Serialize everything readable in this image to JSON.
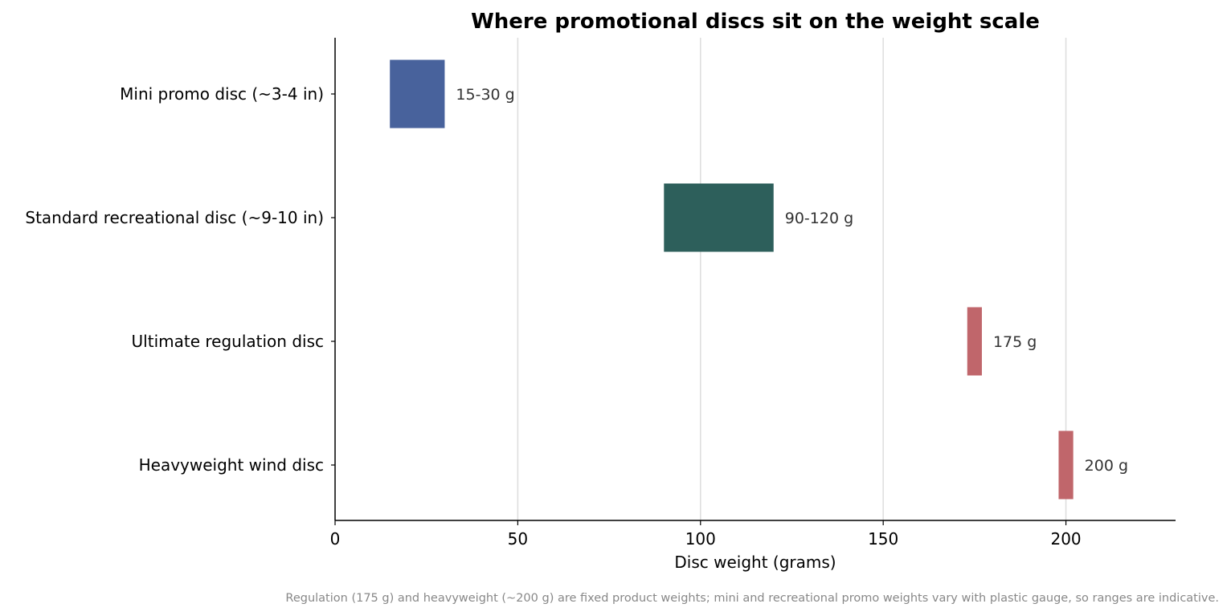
{
  "chart_data": {
    "type": "bar",
    "orientation": "horizontal",
    "title": "Where promotional discs sit on the weight scale",
    "xlabel": "Disc weight (grams)",
    "ylabel": "",
    "xlim": [
      0,
      230
    ],
    "xticks": [
      0,
      50,
      100,
      150,
      200
    ],
    "grid": "vertical",
    "legend": "none",
    "categories": [
      "Mini promo disc (~3-4 in)",
      "Standard recreational disc (~9-10 in)",
      "Ultimate regulation disc",
      "Heavyweight wind disc"
    ],
    "ranges": [
      {
        "low": 15,
        "high": 30,
        "label": "15-30 g",
        "color": "#48629c"
      },
      {
        "low": 90,
        "high": 120,
        "label": "90-120 g",
        "color": "#2d5f5b"
      },
      {
        "low": 173,
        "high": 177,
        "label": "175 g",
        "color": "#c0666b"
      },
      {
        "low": 198,
        "high": 202,
        "label": "200 g",
        "color": "#c0666b"
      }
    ],
    "footnote": "Regulation (175 g) and heavyweight (~200 g) are fixed product weights; mini and recreational promo weights vary with plastic gauge, so ranges are indicative."
  }
}
